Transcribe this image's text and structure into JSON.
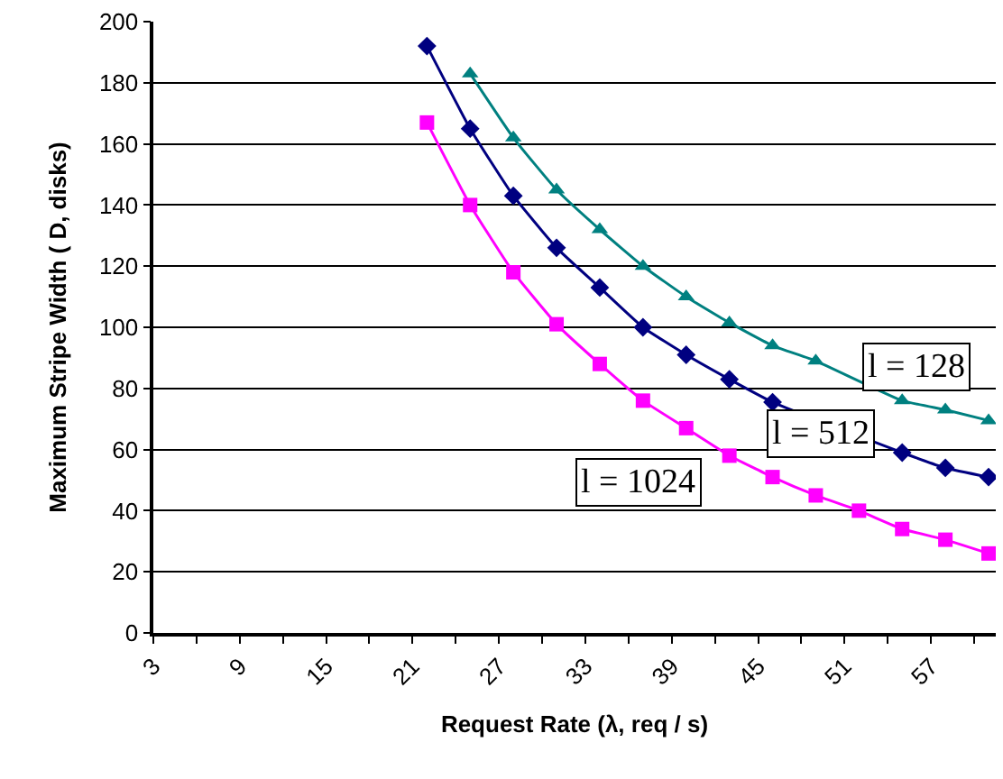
{
  "chart_data": {
    "type": "line",
    "xlabel": "Request Rate (λ, req / s)",
    "ylabel": "Maximum Stripe Width ( D, disks)",
    "x": [
      22,
      25,
      28,
      31,
      34,
      37,
      40,
      43,
      46,
      49,
      52,
      55,
      58,
      61
    ],
    "series": [
      {
        "color": "#008080",
        "marker": "triangle",
        "values": [
          null,
          183,
          162,
          145,
          132,
          120,
          110,
          101.5,
          94,
          89,
          null,
          76,
          73,
          69.5
        ]
      },
      {
        "color": "#000080",
        "marker": "diamond",
        "values": [
          192,
          165,
          143,
          126,
          113,
          100,
          91,
          83,
          75.5,
          null,
          null,
          59,
          54,
          51
        ]
      },
      {
        "color": "#ff00ff",
        "marker": "square",
        "values": [
          167,
          140,
          118,
          101,
          88,
          76,
          67,
          58,
          51,
          45,
          40,
          34,
          30.5,
          26
        ]
      }
    ],
    "xlim": [
      3,
      61.5
    ],
    "xticks": [
      3,
      {
        "value": 6,
        "label": null
      },
      9,
      {
        "value": 12,
        "label": null
      },
      15,
      {
        "value": 18,
        "label": null
      },
      21,
      {
        "value": 24,
        "label": null
      },
      27,
      {
        "value": 30,
        "label": null
      },
      33,
      {
        "value": 36,
        "label": null
      },
      39,
      {
        "value": 42,
        "label": null
      },
      45,
      {
        "value": 48,
        "label": null
      },
      51,
      {
        "value": 54,
        "label": null
      },
      57,
      {
        "value": 60,
        "label": null
      }
    ],
    "ylim": [
      0,
      200
    ],
    "yticks": [
      0,
      20,
      40,
      60,
      80,
      100,
      120,
      140,
      160,
      180,
      200
    ],
    "grid": "y",
    "line_style": "solid",
    "annotations": [
      "l = 128",
      "l = 512",
      "l = 1024"
    ]
  }
}
